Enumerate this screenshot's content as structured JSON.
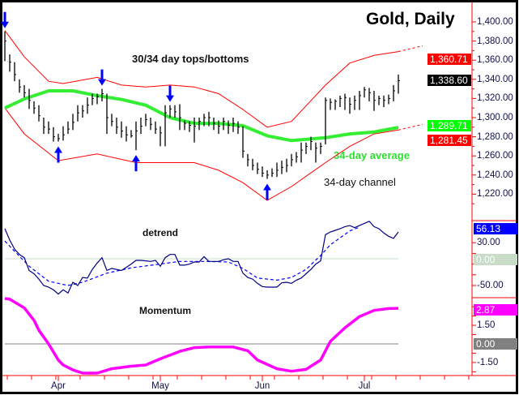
{
  "chart_data": [
    {
      "type": "ohlc",
      "title": "Gold, Daily",
      "annotations": [
        "30/34 day tops/bottoms",
        "34-day average",
        "34-day channel"
      ],
      "ylim": [
        1205,
        1422
      ],
      "y_ticks": [
        1400,
        1380,
        1360,
        1340,
        1320,
        1300,
        1280,
        1260,
        1240,
        1220
      ],
      "y_tick_labels": [
        "1,400.00",
        "1,380.00",
        "1,360.00",
        "1,340.00",
        "1,320.00",
        "1,300.00",
        "1,280.00",
        "1,260.00",
        "1,240.00",
        "1,220.00"
      ],
      "bars_hlc": [
        [
          1390,
          1359,
          1380
        ],
        [
          1366,
          1348,
          1358
        ],
        [
          1358,
          1338,
          1345
        ],
        [
          1340,
          1326,
          1332
        ],
        [
          1334,
          1321,
          1326
        ],
        [
          1330,
          1309,
          1318
        ],
        [
          1317,
          1304,
          1310
        ],
        [
          1313,
          1296,
          1302
        ],
        [
          1300,
          1283,
          1290
        ],
        [
          1296,
          1283,
          1288
        ],
        [
          1290,
          1275,
          1280
        ],
        [
          1283,
          1275,
          1278
        ],
        [
          1291,
          1276,
          1282
        ],
        [
          1296,
          1283,
          1288
        ],
        [
          1304,
          1287,
          1295
        ],
        [
          1313,
          1296,
          1305
        ],
        [
          1313,
          1300,
          1307
        ],
        [
          1321,
          1304,
          1313
        ],
        [
          1325,
          1313,
          1320
        ],
        [
          1325,
          1314,
          1322
        ],
        [
          1330,
          1317,
          1325
        ],
        [
          1325,
          1283,
          1300
        ],
        [
          1304,
          1291,
          1296
        ],
        [
          1300,
          1283,
          1290
        ],
        [
          1296,
          1279,
          1286
        ],
        [
          1291,
          1275,
          1282
        ],
        [
          1287,
          1279,
          1281
        ],
        [
          1296,
          1266,
          1286
        ],
        [
          1300,
          1283,
          1291
        ],
        [
          1304,
          1291,
          1298
        ],
        [
          1300,
          1287,
          1293
        ],
        [
          1296,
          1283,
          1288
        ],
        [
          1291,
          1270,
          1284
        ],
        [
          1313,
          1270,
          1305
        ],
        [
          1313,
          1300,
          1309
        ],
        [
          1313,
          1300,
          1306
        ],
        [
          1314,
          1287,
          1300
        ],
        [
          1297,
          1287,
          1294
        ],
        [
          1296,
          1285,
          1292
        ],
        [
          1300,
          1274,
          1291
        ],
        [
          1300,
          1287,
          1296
        ],
        [
          1304,
          1291,
          1300
        ],
        [
          1306,
          1291,
          1300
        ],
        [
          1300,
          1287,
          1294
        ],
        [
          1297,
          1283,
          1291
        ],
        [
          1300,
          1287,
          1296
        ],
        [
          1297,
          1283,
          1292
        ],
        [
          1300,
          1285,
          1294
        ],
        [
          1296,
          1283,
          1290
        ],
        [
          1291,
          1258,
          1265
        ],
        [
          1262,
          1249,
          1256
        ],
        [
          1257,
          1245,
          1250
        ],
        [
          1253,
          1241,
          1246
        ],
        [
          1249,
          1238,
          1242
        ],
        [
          1245,
          1236,
          1240
        ],
        [
          1247,
          1238,
          1242
        ],
        [
          1253,
          1238,
          1245
        ],
        [
          1255,
          1241,
          1248
        ],
        [
          1257,
          1243,
          1250
        ],
        [
          1262,
          1249,
          1256
        ],
        [
          1264,
          1253,
          1259
        ],
        [
          1274,
          1253,
          1266
        ],
        [
          1274,
          1262,
          1270
        ],
        [
          1280,
          1266,
          1275
        ],
        [
          1274,
          1253,
          1268
        ],
        [
          1274,
          1262,
          1270
        ],
        [
          1321,
          1272,
          1318
        ],
        [
          1320,
          1308,
          1316
        ],
        [
          1319,
          1308,
          1317
        ],
        [
          1323,
          1311,
          1320
        ],
        [
          1325,
          1308,
          1321
        ],
        [
          1321,
          1304,
          1314
        ],
        [
          1323,
          1308,
          1318
        ],
        [
          1328,
          1308,
          1323
        ],
        [
          1332,
          1321,
          1329
        ],
        [
          1331,
          1317,
          1326
        ],
        [
          1328,
          1307,
          1318
        ],
        [
          1323,
          1313,
          1320
        ],
        [
          1323,
          1311,
          1318
        ],
        [
          1324,
          1314,
          1320
        ],
        [
          1334,
          1317,
          1328
        ],
        [
          1345,
          1325,
          1338.6
        ]
      ],
      "average_34day": [
        [
          0,
          1310
        ],
        [
          4,
          1319.5
        ],
        [
          9,
          1328
        ],
        [
          14,
          1328
        ],
        [
          19,
          1323
        ],
        [
          24,
          1319
        ],
        [
          29,
          1313
        ],
        [
          34,
          1300
        ],
        [
          39,
          1294
        ],
        [
          44,
          1294
        ],
        [
          49,
          1291.5
        ],
        [
          54,
          1281
        ],
        [
          59,
          1276
        ],
        [
          66,
          1279
        ],
        [
          71,
          1283
        ],
        [
          76,
          1285
        ],
        [
          81,
          1289.71
        ]
      ],
      "channel_upper": [
        [
          0,
          1391
        ],
        [
          4,
          1363.5
        ],
        [
          9,
          1338
        ],
        [
          12,
          1335.6
        ],
        [
          19,
          1342
        ],
        [
          24,
          1334
        ],
        [
          29,
          1332
        ],
        [
          34,
          1334
        ],
        [
          39,
          1332
        ],
        [
          44,
          1325
        ],
        [
          49,
          1308.5
        ],
        [
          54,
          1290
        ],
        [
          59,
          1296
        ],
        [
          66,
          1334
        ],
        [
          71,
          1357
        ],
        [
          76,
          1365
        ],
        [
          81,
          1369
        ]
      ],
      "channel_upper_projection": [
        [
          81,
          1369
        ],
        [
          86,
          1375
        ]
      ],
      "channel_lower": [
        [
          0,
          1310
        ],
        [
          4,
          1283
        ],
        [
          11,
          1255
        ],
        [
          19,
          1262
        ],
        [
          27,
          1253
        ],
        [
          34,
          1253
        ],
        [
          39,
          1253
        ],
        [
          44,
          1245
        ],
        [
          49,
          1232
        ],
        [
          54,
          1213.6
        ],
        [
          59,
          1228
        ],
        [
          66,
          1253
        ],
        [
          71,
          1270
        ],
        [
          76,
          1283
        ],
        [
          81,
          1287
        ]
      ],
      "channel_lower_projection": [
        [
          81,
          1287
        ],
        [
          86,
          1293
        ]
      ],
      "tops": [
        0,
        20,
        34
      ],
      "bottoms": [
        11,
        27,
        54
      ],
      "value_labels": [
        {
          "text": "1,360.71",
          "value": 1360.71,
          "color": "#ff0000"
        },
        {
          "text": "1,338.60",
          "value": 1338.6,
          "color": "#000000"
        },
        {
          "text": "1,289.71",
          "value": 1289.71,
          "color": "#00ff00"
        },
        {
          "text": "1,281.45",
          "value": 1281.45,
          "color": "#ff0000"
        }
      ],
      "colors": {
        "bars": "#000000",
        "average": "#33ee33",
        "channel": "#ff0000",
        "arrows": "#0000ff"
      }
    },
    {
      "type": "line",
      "title": "detrend",
      "y_ticks": [
        30,
        -50
      ],
      "y_tick_labels": [
        "30.00",
        "-50.00"
      ],
      "zero_label": "0.00",
      "detrend": [
        56,
        35,
        18,
        8,
        2,
        -22,
        -28,
        -38,
        -50,
        -53,
        -58,
        -66,
        -58,
        -64,
        -44,
        -50,
        -35,
        -36,
        -20,
        -8,
        2,
        -22,
        -18,
        -20,
        -22,
        -16,
        -10,
        -3,
        -3,
        -4,
        -5,
        -3,
        -14,
        2,
        8,
        8,
        -12,
        -12,
        -10,
        -6,
        -6,
        4,
        -5,
        -5,
        -5,
        -2,
        0,
        -5,
        -5,
        -27,
        -35,
        -38,
        -46,
        -52,
        -53,
        -53,
        -53,
        -45,
        -44,
        -46,
        -40,
        -36,
        -28,
        -20,
        -10,
        -4,
        45,
        50,
        53,
        56,
        60,
        62,
        58,
        62,
        66,
        70,
        60,
        56,
        48,
        42,
        38,
        50
      ],
      "detrend_average": [
        [
          0,
          33
        ],
        [
          2,
          14
        ],
        [
          5,
          -14
        ],
        [
          9,
          -42
        ],
        [
          13,
          -50
        ],
        [
          16,
          -44
        ],
        [
          21,
          -27
        ],
        [
          26,
          -17
        ],
        [
          31,
          -11
        ],
        [
          36,
          -5
        ],
        [
          41,
          -5
        ],
        [
          46,
          -6
        ],
        [
          49,
          -18
        ],
        [
          52,
          -36
        ],
        [
          56,
          -40
        ],
        [
          59,
          -35
        ],
        [
          62,
          -20
        ],
        [
          65,
          6
        ],
        [
          67,
          26
        ],
        [
          71,
          52
        ],
        [
          73,
          59
        ]
      ],
      "value_label": {
        "text": "56.13",
        "color": "#0000ff"
      },
      "colors": {
        "line": "#000080",
        "average": "#0000ff",
        "zero": "#c8dcc8"
      }
    },
    {
      "type": "line",
      "title": "Momentum",
      "y_ticks": [
        1.5,
        -1.5
      ],
      "y_tick_labels": [
        "1.50",
        "-1.50"
      ],
      "zero_label": "0.00",
      "momentum": [
        [
          0,
          3.66
        ],
        [
          1,
          3.6
        ],
        [
          4,
          2.9
        ],
        [
          6,
          1.9
        ],
        [
          7,
          1.1
        ],
        [
          9,
          0
        ],
        [
          11,
          -1.3
        ],
        [
          12,
          -1.7
        ],
        [
          14,
          -2.1
        ],
        [
          16,
          -2.35
        ],
        [
          19,
          -2.35
        ],
        [
          22,
          -2.0
        ],
        [
          26,
          -1.8
        ],
        [
          29,
          -1.7
        ],
        [
          32,
          -1.2
        ],
        [
          36,
          -0.6
        ],
        [
          39,
          -0.3
        ],
        [
          42,
          -0.25
        ],
        [
          47,
          -0.25
        ],
        [
          50,
          -0.55
        ],
        [
          52,
          -1.3
        ],
        [
          56,
          -2.0
        ],
        [
          59,
          -2.2
        ],
        [
          62,
          -2.05
        ],
        [
          65,
          -1.3
        ],
        [
          67,
          0.2
        ],
        [
          70,
          1.3
        ],
        [
          73,
          2.2
        ],
        [
          76,
          2.7
        ],
        [
          79,
          2.85
        ],
        [
          81,
          2.87
        ]
      ],
      "value_label": {
        "text": "2.87",
        "color": "#ff00ff"
      },
      "colors": {
        "line": "#ff00ff",
        "zero": "#808080"
      }
    }
  ],
  "x_axis": {
    "months": [
      {
        "label": "Apr",
        "index": 11
      },
      {
        "label": "May",
        "index": 32
      },
      {
        "label": "Jun",
        "index": 53
      },
      {
        "label": "Jul",
        "index": 74
      }
    ]
  }
}
